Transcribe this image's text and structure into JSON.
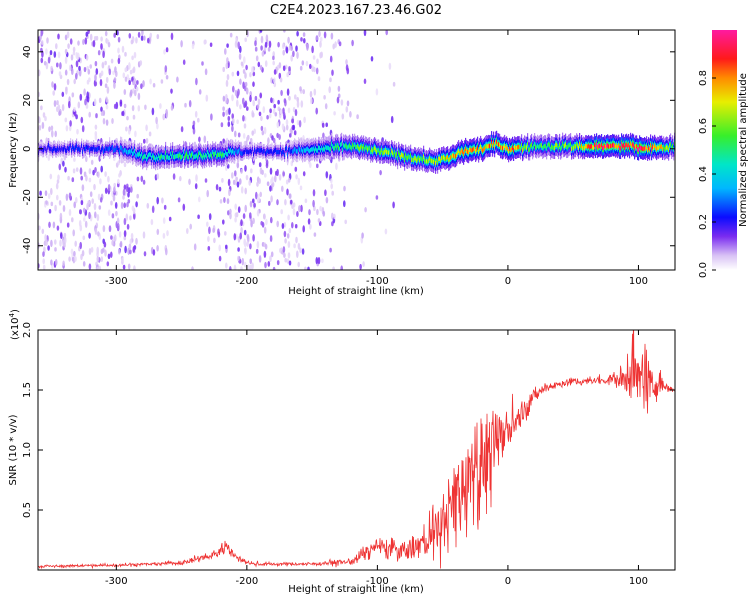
{
  "title": "C2E4.2023.167.23.46.G02",
  "chart_data": [
    {
      "type": "heatmap",
      "xlabel": "Height of straight line (km)",
      "ylabel": "Frequency (Hz)",
      "xlim": [
        -360,
        128
      ],
      "ylim": [
        -50,
        49
      ],
      "xticks": [
        -300,
        -200,
        -100,
        0,
        100
      ],
      "yticks": [
        -40,
        -20,
        0,
        20,
        40
      ],
      "colorbar": {
        "label": "Normalized spectral amplitude",
        "range": [
          0.0,
          1.0
        ],
        "ticks": [
          0.0,
          0.2,
          0.4,
          0.6,
          0.8
        ],
        "colors": [
          "#ffffff",
          "#d9c2f5",
          "#7a2cf0",
          "#0b0cff",
          "#00b7ff",
          "#00e6c8",
          "#38ef2a",
          "#e8ee00",
          "#ff8c00",
          "#ff1a1a",
          "#ff1aa0"
        ]
      },
      "signal_band": [
        {
          "x": -360,
          "center": 0,
          "amplitude": 0.2
        },
        {
          "x": -300,
          "center": 0,
          "amplitude": 0.25
        },
        {
          "x": -280,
          "center": -3,
          "amplitude": 0.45
        },
        {
          "x": -250,
          "center": -3,
          "amplitude": 0.5
        },
        {
          "x": -220,
          "center": -2,
          "amplitude": 0.5
        },
        {
          "x": -200,
          "center": -1,
          "amplitude": 0.2
        },
        {
          "x": -170,
          "center": -1,
          "amplitude": 0.25
        },
        {
          "x": -140,
          "center": 0,
          "amplitude": 0.45
        },
        {
          "x": -120,
          "center": 1,
          "amplitude": 0.55
        },
        {
          "x": -100,
          "center": -1,
          "amplitude": 0.6
        },
        {
          "x": -80,
          "center": -3,
          "amplitude": 0.6
        },
        {
          "x": -60,
          "center": -5,
          "amplitude": 0.6
        },
        {
          "x": -45,
          "center": -4,
          "amplitude": 0.7
        },
        {
          "x": -35,
          "center": -1,
          "amplitude": 0.8
        },
        {
          "x": -20,
          "center": 0,
          "amplitude": 0.75
        },
        {
          "x": -10,
          "center": 2,
          "amplitude": 0.8
        },
        {
          "x": 0,
          "center": 0,
          "amplitude": 0.85
        },
        {
          "x": 20,
          "center": 1,
          "amplitude": 0.55
        },
        {
          "x": 50,
          "center": 1,
          "amplitude": 0.6
        },
        {
          "x": 70,
          "center": 1,
          "amplitude": 0.95
        },
        {
          "x": 95,
          "center": 1,
          "amplitude": 0.9
        },
        {
          "x": 105,
          "center": 0,
          "amplitude": 0.95
        },
        {
          "x": 128,
          "center": 1,
          "amplitude": 0.5
        }
      ],
      "noise_regions": [
        {
          "x0": -360,
          "x1": -285,
          "density": 0.85
        },
        {
          "x0": -285,
          "x1": -260,
          "density": 0.35
        },
        {
          "x0": -260,
          "x1": -235,
          "density": 0.2
        },
        {
          "x0": -235,
          "x1": -218,
          "density": 0.25
        },
        {
          "x0": -218,
          "x1": -165,
          "density": 0.9
        },
        {
          "x0": -165,
          "x1": -140,
          "density": 0.55
        },
        {
          "x0": -140,
          "x1": -122,
          "density": 0.35
        },
        {
          "x0": -122,
          "x1": -85,
          "density": 0.08
        }
      ]
    },
    {
      "type": "line",
      "xlabel": "Height of straight line (km)",
      "ylabel": "SNR (10 * v/v)",
      "y_scale_label": "(x10",
      "y_scale_exp": "4",
      "y_scale_close": ")",
      "xlim": [
        -360,
        128
      ],
      "ylim": [
        0,
        20000
      ],
      "xticks": [
        -300,
        -200,
        -100,
        0,
        100
      ],
      "yticks": [
        5000,
        10000,
        15000,
        20000
      ],
      "ytick_labels": [
        "0.5",
        "1.0",
        "1.5",
        "2.0"
      ],
      "color": "#ee3333",
      "series": [
        {
          "x": [
            -360,
            -300,
            -250,
            -225,
            -215,
            -208,
            -195,
            -150,
            -120,
            -100,
            -80,
            -60,
            -50,
            -40,
            -30,
            -20,
            -10,
            0,
            10,
            20,
            30,
            40,
            50,
            60,
            70,
            80,
            90,
            95,
            100,
            105,
            110,
            115,
            120,
            128
          ],
          "y": [
            300,
            400,
            600,
            1200,
            2000,
            1000,
            500,
            500,
            700,
            2000,
            1500,
            2500,
            4000,
            5500,
            8000,
            9000,
            10000,
            12000,
            13000,
            14500,
            15300,
            15500,
            15700,
            15700,
            15800,
            15900,
            16000,
            17000,
            15500,
            16500,
            15000,
            16000,
            15200,
            15000
          ],
          "noise": [
            100,
            100,
            150,
            300,
            500,
            300,
            150,
            150,
            250,
            800,
            800,
            1500,
            2500,
            3500,
            4500,
            4500,
            3500,
            2000,
            1000,
            600,
            400,
            300,
            300,
            300,
            300,
            400,
            1500,
            2500,
            2500,
            2500,
            2000,
            1000,
            300,
            300
          ]
        }
      ]
    }
  ]
}
